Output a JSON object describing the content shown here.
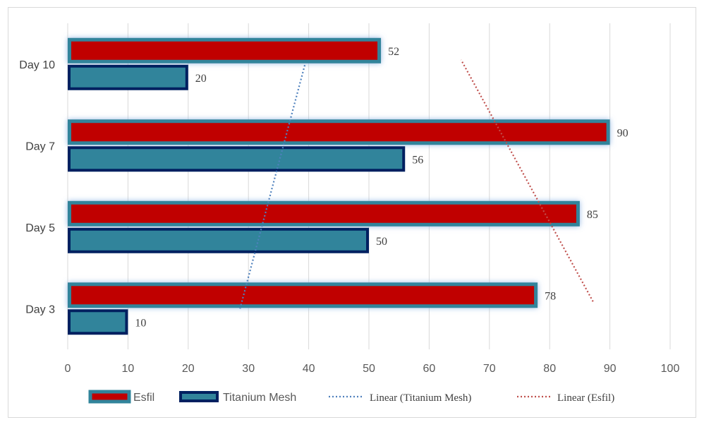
{
  "chart_data": {
    "type": "bar",
    "orientation": "horizontal",
    "categories": [
      "Day 3",
      "Day 5",
      "Day 7",
      "Day 10"
    ],
    "series": [
      {
        "name": "Esfil",
        "values": [
          78,
          85,
          90,
          52
        ],
        "color": "#c00000",
        "border": "#31849b"
      },
      {
        "name": "Titanium Mesh",
        "values": [
          10,
          50,
          56,
          20
        ],
        "color": "#31849b",
        "border": "#002060"
      }
    ],
    "trendlines": [
      {
        "name": "Linear (Titanium Mesh)",
        "series": "Titanium Mesh",
        "type": "linear",
        "color": "#4f81bd"
      },
      {
        "name": "Linear (Esfil)",
        "series": "Esfil",
        "type": "linear",
        "color": "#c0504d"
      }
    ],
    "xlim": [
      0,
      100
    ],
    "xticks": [
      "0",
      "10",
      "20",
      "30",
      "40",
      "50",
      "60",
      "70",
      "80",
      "90",
      "100"
    ],
    "grid": "vertical",
    "legend_position": "bottom",
    "title": "",
    "xlabel": "",
    "ylabel": ""
  }
}
